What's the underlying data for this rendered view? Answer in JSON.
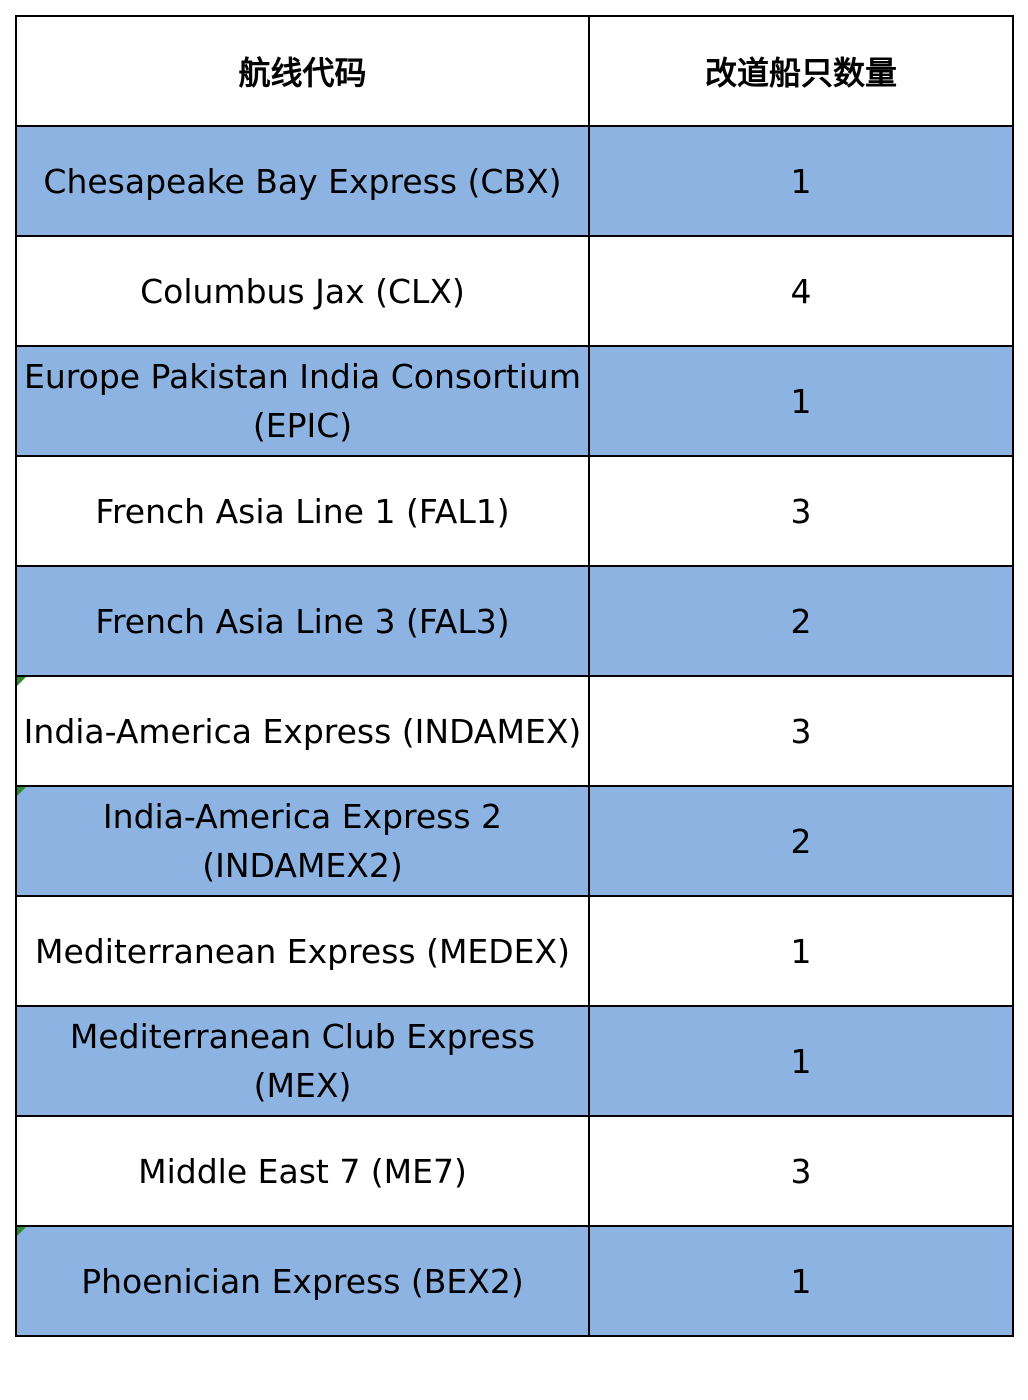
{
  "table": {
    "headers": [
      "航线代码",
      "改道船只数量"
    ],
    "rows": [
      {
        "route": "Chesapeake Bay Express (CBX)",
        "count": "1",
        "shaded": true,
        "marker": false
      },
      {
        "route": "Columbus Jax (CLX)",
        "count": "4",
        "shaded": false,
        "marker": false
      },
      {
        "route": "Europe Pakistan India Consortium (EPIC)",
        "count": "1",
        "shaded": true,
        "marker": false
      },
      {
        "route": "French Asia Line 1 (FAL1)",
        "count": "3",
        "shaded": false,
        "marker": false
      },
      {
        "route": "French Asia Line 3 (FAL3)",
        "count": "2",
        "shaded": true,
        "marker": false
      },
      {
        "route": "India-America Express (INDAMEX)",
        "count": "3",
        "shaded": false,
        "marker": true
      },
      {
        "route": "India-America Express 2 (INDAMEX2)",
        "count": "2",
        "shaded": true,
        "marker": true
      },
      {
        "route": "Mediterranean Express (MEDEX)",
        "count": "1",
        "shaded": false,
        "marker": false
      },
      {
        "route": "Mediterranean Club Express (MEX)",
        "count": "1",
        "shaded": true,
        "marker": false
      },
      {
        "route": "Middle East 7 (ME7)",
        "count": "3",
        "shaded": false,
        "marker": false
      },
      {
        "route": "Phoenician Express (BEX2)",
        "count": "1",
        "shaded": true,
        "marker": true
      }
    ]
  },
  "colors": {
    "shaded_row": "#8db3e2",
    "plain_row": "#ffffff",
    "border": "#000000",
    "comment_marker": "#2e8b2e"
  }
}
